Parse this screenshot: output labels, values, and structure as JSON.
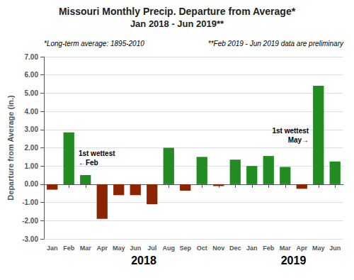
{
  "chart_data": {
    "type": "bar",
    "title": "Missouri Monthly Precip. Departure from Average*",
    "subtitle": "Jan 2018 - Jun 2019**",
    "footnotes": [
      "*Long-term average: 1895-2010",
      "**Feb 2019 - Jun 2019 data are preliminary"
    ],
    "ylabel": "Departure from Average (in.)",
    "categories": [
      "Jan",
      "Feb",
      "Mar",
      "Apr",
      "May",
      "Jun",
      "Jul",
      "Aug",
      "Sep",
      "Oct",
      "Nov",
      "Dec",
      "Jan",
      "Feb",
      "Mar",
      "Apr",
      "May",
      "Jun"
    ],
    "values": [
      -0.3,
      2.85,
      0.5,
      -1.9,
      -0.6,
      -0.6,
      -1.1,
      2.0,
      -0.35,
      1.5,
      -0.1,
      1.35,
      1.0,
      1.55,
      0.95,
      -0.25,
      5.4,
      1.25
    ],
    "colors": [
      "#8B2500",
      "#228B22",
      "#228B22",
      "#8B2500",
      "#8B2500",
      "#8B2500",
      "#8B2500",
      "#228B22",
      "#8B2500",
      "#228B22",
      "#8B2500",
      "#228B22",
      "#228B22",
      "#228B22",
      "#228B22",
      "#8B2500",
      "#228B22",
      "#228B22"
    ],
    "ylim": [
      -3.0,
      7.0
    ],
    "yticks": [
      {
        "value": -3.0,
        "label": "-3.00"
      },
      {
        "value": -2.0,
        "label": "-2.00"
      },
      {
        "value": -1.0,
        "label": "-1.00"
      },
      {
        "value": 0.0,
        "label": "0.00"
      },
      {
        "value": 1.0,
        "label": "1.00"
      },
      {
        "value": 2.0,
        "label": "2.00"
      },
      {
        "value": 3.0,
        "label": "3.00"
      },
      {
        "value": 4.0,
        "label": "4.00"
      },
      {
        "value": 5.0,
        "label": "5.00"
      },
      {
        "value": 6.0,
        "label": "6.00"
      },
      {
        "value": 7.0,
        "label": "7.00"
      }
    ],
    "grid": true,
    "x_groups": [
      {
        "label": "2018",
        "start": 0,
        "end": 11
      },
      {
        "label": "2019",
        "start": 12,
        "end": 17
      }
    ],
    "annotations": [
      {
        "index": 1,
        "texts": [
          "1st wettest",
          "←Feb"
        ]
      },
      {
        "index": 16,
        "texts": [
          "1st wettest",
          "May→"
        ]
      }
    ]
  }
}
